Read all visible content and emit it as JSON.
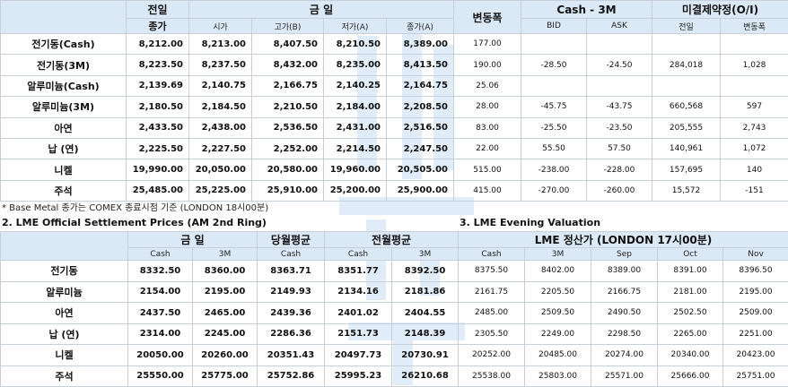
{
  "top": {
    "headers": {
      "prev_close_l1": "전일",
      "prev_close_l2": "종가",
      "today": "금   일",
      "open": "시가",
      "high": "고가(B)",
      "low": "저가(A)",
      "close": "종가(A)",
      "change": "변동폭",
      "cash3m": "Cash - 3M",
      "bid": "BID",
      "ask": "ASK",
      "oi": "미결제약정(O/I)",
      "oi_prev": "전일",
      "oi_change": "변동폭"
    },
    "rows": [
      {
        "name": "전기동(Cash)",
        "prev": "8,212.00",
        "open": "8,213.00",
        "high": "8,407.50",
        "low": "8,210.50",
        "close": "8,389.00",
        "change": "177.00",
        "bid": "",
        "ask": "",
        "oi_prev": "",
        "oi_change": ""
      },
      {
        "name": "전기동(3M)",
        "prev": "8,223.50",
        "open": "8,237.50",
        "high": "8,432.00",
        "low": "8,235.00",
        "close": "8,413.50",
        "change": "190.00",
        "bid": "-28.50",
        "ask": "-24.50",
        "oi_prev": "284,018",
        "oi_change": "1,028"
      },
      {
        "name": "알루미늄(Cash)",
        "prev": "2,139.69",
        "open": "2,140.75",
        "high": "2,166.75",
        "low": "2,140.25",
        "close": "2,164.75",
        "change": "25.06",
        "bid": "",
        "ask": "",
        "oi_prev": "",
        "oi_change": ""
      },
      {
        "name": "알루미늄(3M)",
        "prev": "2,180.50",
        "open": "2,184.50",
        "high": "2,210.50",
        "low": "2,184.00",
        "close": "2,208.50",
        "change": "28.00",
        "bid": "-45.75",
        "ask": "-43.75",
        "oi_prev": "660,568",
        "oi_change": "597"
      },
      {
        "name": "아연",
        "prev": "2,433.50",
        "open": "2,438.00",
        "high": "2,536.50",
        "low": "2,431.00",
        "close": "2,516.50",
        "change": "83.00",
        "bid": "-25.50",
        "ask": "-23.50",
        "oi_prev": "205,555",
        "oi_change": "2,743"
      },
      {
        "name": "납 (연)",
        "prev": "2,225.50",
        "open": "2,227.50",
        "high": "2,252.00",
        "low": "2,214.50",
        "close": "2,247.50",
        "change": "22.00",
        "bid": "55.50",
        "ask": "57.50",
        "oi_prev": "140,961",
        "oi_change": "1,072"
      },
      {
        "name": "니켈",
        "prev": "19,990.00",
        "open": "20,050.00",
        "high": "20,580.00",
        "low": "19,960.00",
        "close": "20,505.00",
        "change": "515.00",
        "bid": "-238.00",
        "ask": "-228.00",
        "oi_prev": "157,695",
        "oi_change": "140"
      },
      {
        "name": "주석",
        "prev": "25,485.00",
        "open": "25,225.00",
        "high": "25,910.00",
        "low": "25,200.00",
        "close": "25,900.00",
        "change": "415.00",
        "bid": "-270.00",
        "ask": "-260.00",
        "oi_prev": "15,572",
        "oi_change": "-151"
      }
    ],
    "note": "* Base Metal 종가는 COMEX 종료시점 기준 (LONDON 18시00분)"
  },
  "section2": {
    "title": "2. LME Official Settlement Prices (AM 2nd Ring)",
    "headers": {
      "today": "금   일",
      "month_avg": "당월평균",
      "prev_month_avg": "전월평균",
      "cash": "Cash",
      "m3": "3M"
    },
    "rows": [
      {
        "name": "전기동",
        "cash": "8332.50",
        "m3": "8360.00",
        "cur_cash": "8363.71",
        "prev_cash": "8351.77",
        "prev_3m": "8392.50"
      },
      {
        "name": "알루미늄",
        "cash": "2154.00",
        "m3": "2195.00",
        "cur_cash": "2149.93",
        "prev_cash": "2134.16",
        "prev_3m": "2181.86"
      },
      {
        "name": "아연",
        "cash": "2437.50",
        "m3": "2465.00",
        "cur_cash": "2439.36",
        "prev_cash": "2401.02",
        "prev_3m": "2404.55"
      },
      {
        "name": "납 (연)",
        "cash": "2314.00",
        "m3": "2245.00",
        "cur_cash": "2286.36",
        "prev_cash": "2151.73",
        "prev_3m": "2148.39"
      },
      {
        "name": "니켈",
        "cash": "20050.00",
        "m3": "20260.00",
        "cur_cash": "20351.43",
        "prev_cash": "20497.73",
        "prev_3m": "20730.91"
      },
      {
        "name": "주석",
        "cash": "25550.00",
        "m3": "25775.00",
        "cur_cash": "25752.86",
        "prev_cash": "25995.23",
        "prev_3m": "26210.68"
      }
    ]
  },
  "section3": {
    "title": "3. LME Evening Valuation",
    "headers": {
      "group": "LME 정산가 (LONDON 17시00분)",
      "cash": "Cash",
      "m3": "3M",
      "sep": "Sep",
      "oct": "Oct",
      "nov": "Nov"
    },
    "rows": [
      {
        "cash": "8375.50",
        "m3": "8402.00",
        "sep": "8389.00",
        "oct": "8391.00",
        "nov": "8396.50"
      },
      {
        "cash": "2161.75",
        "m3": "2205.50",
        "sep": "2166.75",
        "oct": "2181.00",
        "nov": "2195.00"
      },
      {
        "cash": "2485.00",
        "m3": "2509.50",
        "sep": "2490.50",
        "oct": "2502.50",
        "nov": "2509.00"
      },
      {
        "cash": "2305.50",
        "m3": "2249.00",
        "sep": "2298.50",
        "oct": "2265.00",
        "nov": "2251.00"
      },
      {
        "cash": "20252.00",
        "m3": "20485.00",
        "sep": "20274.00",
        "oct": "20340.00",
        "nov": "20423.00"
      },
      {
        "cash": "25538.00",
        "m3": "25803.00",
        "sep": "25571.00",
        "oct": "25666.00",
        "nov": "25751.00"
      }
    ]
  },
  "colors": {
    "header_bg": "#dbe9f6",
    "border": "#c9cfd8",
    "watermark": "#dbeaf7"
  }
}
